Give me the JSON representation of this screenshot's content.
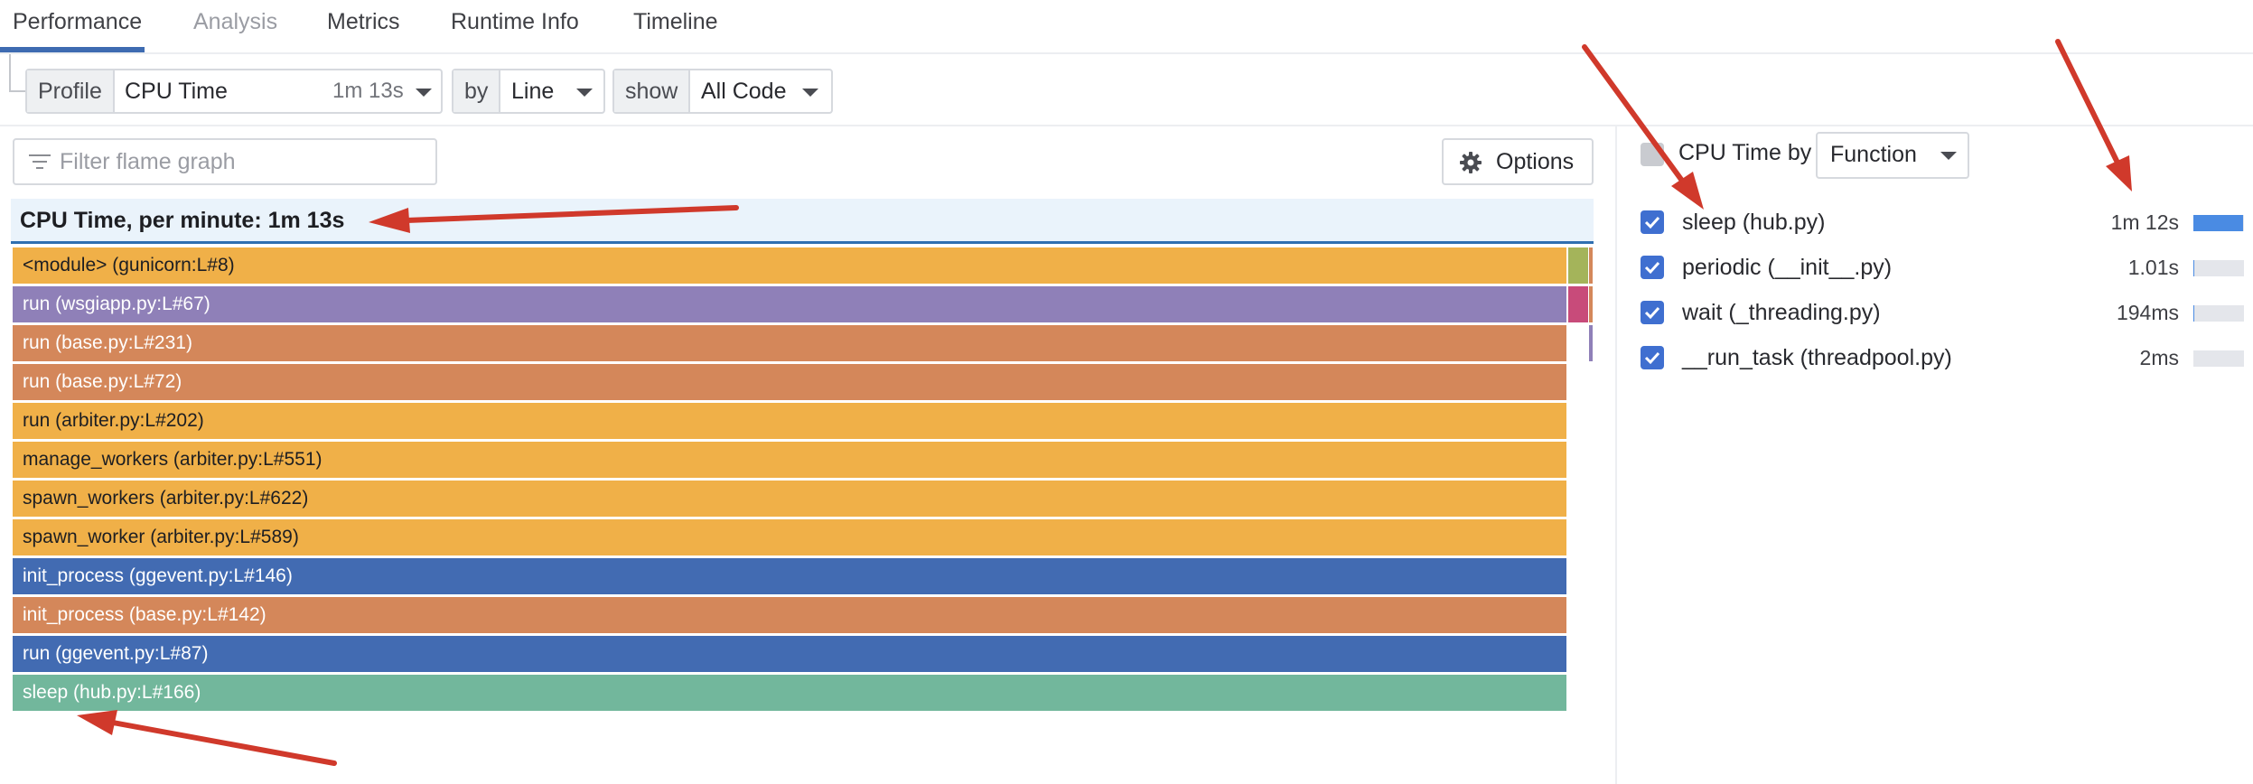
{
  "tabs": [
    {
      "label": "Performance",
      "active": true
    },
    {
      "label": "Analysis",
      "active": false
    },
    {
      "label": "Metrics",
      "active": false
    },
    {
      "label": "Runtime Info",
      "active": false
    },
    {
      "label": "Timeline",
      "active": false
    }
  ],
  "toolbar": {
    "profile_prefix": "Profile",
    "profile_value": "CPU Time",
    "profile_meta": "1m 13s",
    "by_prefix": "by",
    "by_value": "Line",
    "show_prefix": "show",
    "show_value": "All Code"
  },
  "filter": {
    "placeholder": "Filter flame graph",
    "icon": "filter-icon"
  },
  "options": {
    "label": "Options",
    "icon": "gear-icon"
  },
  "flamegraph": {
    "header": "CPU Time, per minute: 1m 13s",
    "frames": [
      {
        "label": "<module> (gunicorn:L#8)",
        "color": "#f0b048"
      },
      {
        "label": "run (wsgiapp.py:L#67)",
        "color": "#8f80b8"
      },
      {
        "label": "run (base.py:L#231)",
        "color": "#d4875a"
      },
      {
        "label": "run (base.py:L#72)",
        "color": "#d4875a"
      },
      {
        "label": "run (arbiter.py:L#202)",
        "color": "#f0b048"
      },
      {
        "label": "manage_workers (arbiter.py:L#551)",
        "color": "#f0b048"
      },
      {
        "label": "spawn_workers (arbiter.py:L#622)",
        "color": "#f0b048"
      },
      {
        "label": "spawn_worker (arbiter.py:L#589)",
        "color": "#f0b048"
      },
      {
        "label": "init_process (ggevent.py:L#146)",
        "color": "#426bb2"
      },
      {
        "label": "init_process (base.py:L#142)",
        "color": "#d4875a"
      },
      {
        "label": "run (ggevent.py:L#87)",
        "color": "#426bb2"
      },
      {
        "label": "sleep (hub.py:L#166)",
        "color": "#72b79c"
      }
    ]
  },
  "legend": {
    "title": "CPU Time by",
    "group_by": "Function",
    "items": [
      {
        "label": "sleep (hub.py)",
        "value": "1m 12s",
        "share": 0.986,
        "checked": true
      },
      {
        "label": "periodic (__init__.py)",
        "value": "1.01s",
        "share": 0.014,
        "checked": true
      },
      {
        "label": "wait (_threading.py)",
        "value": "194ms",
        "share": 0.003,
        "checked": true
      },
      {
        "label": "__run_task (threadpool.py)",
        "value": "2ms",
        "share": 0.0,
        "checked": true
      }
    ],
    "bar_color": "#4a8be3"
  },
  "colors": {
    "accent": "#3e6bb1",
    "annotation": "#d0392b"
  }
}
